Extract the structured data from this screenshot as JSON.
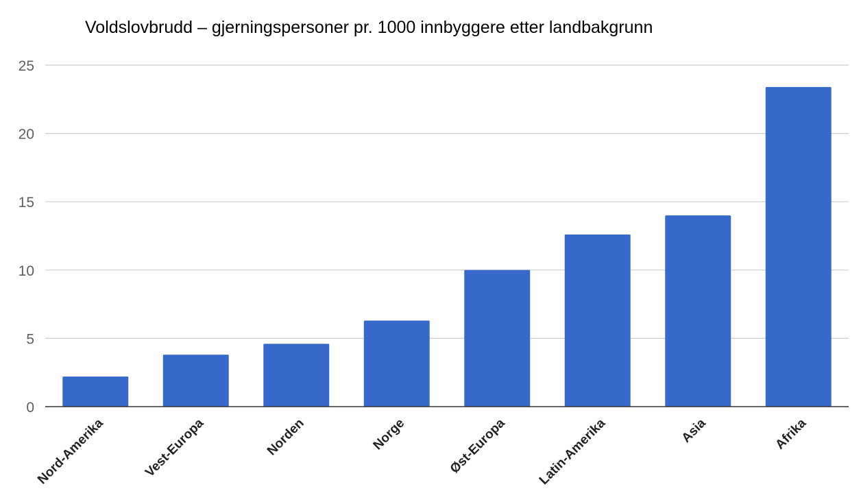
{
  "chart_data": {
    "type": "bar",
    "title": "Voldslovbrudd – gjerningspersoner pr. 1000 innbyggere etter landbakgrunn",
    "xlabel": "",
    "ylabel": "",
    "categories": [
      "Nord-Amerika",
      "Vest-Europa",
      "Norden",
      "Norge",
      "Øst-Europa",
      "Latin-Amerika",
      "Asia",
      "Afrika"
    ],
    "values": [
      2.2,
      3.8,
      4.6,
      6.3,
      10.0,
      12.6,
      14.0,
      23.4
    ],
    "ylim": [
      0,
      25
    ],
    "yticks": [
      0,
      5,
      10,
      15,
      20,
      25
    ],
    "grid": true,
    "legend": "none",
    "bar_color": "#3669c9"
  }
}
